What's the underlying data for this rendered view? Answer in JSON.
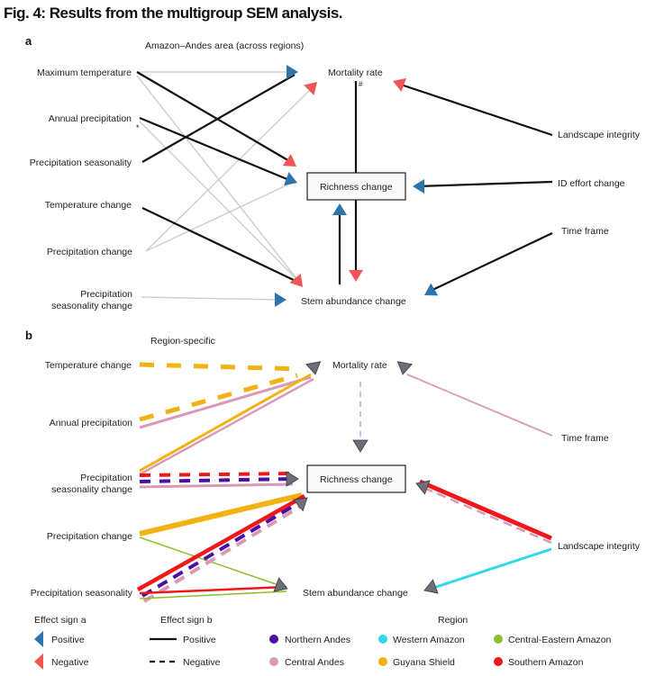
{
  "title": "Fig. 4: Results from the multigroup SEM analysis.",
  "colors": {
    "positive": "#2c74b0",
    "negative": "#f25555",
    "northern_andes": "#4b0fa3",
    "western_amazon": "#2fd9e6",
    "central_eastern_amazon": "#8cbf2a",
    "central_andes": "#d99ab7",
    "guyana_shield": "#f2b214",
    "southern_amazon": "#f0171a",
    "region_arrow": "#6c6e78"
  },
  "panel_a": {
    "label": "a",
    "subtitle": "Amazon–Andes area (across regions)",
    "nodes": {
      "max_temp": "Maximum temperature",
      "annual_precip": "Annual precipitation",
      "precip_seasonality": "Precipitation seasonality",
      "temp_change": "Temperature change",
      "precip_change": "Precipitation change",
      "psc_1": "Precipitation",
      "psc_2": "seasonality change",
      "mortality": "Mortality rate",
      "richness": "Richness change",
      "stem": "Stem abundance change",
      "landscape": "Landscape integrity",
      "id_effort": "ID effort change",
      "time_frame": "Time frame"
    },
    "asterisk": "*",
    "hash": "#"
  },
  "panel_b": {
    "label": "b",
    "subtitle": "Region-specific",
    "nodes": {
      "temp_change": "Temperature change",
      "annual_precip": "Annual precipitation",
      "psc_1": "Precipitation",
      "psc_2": "seasonality change",
      "precip_change": "Precipitation change",
      "precip_seasonality": "Precipitation seasonality",
      "mortality": "Mortality rate",
      "richness": "Richness change",
      "stem": "Stem abundance change",
      "time_frame": "Time frame",
      "landscape": "Landscape integrity"
    }
  },
  "legend": {
    "effect_a": {
      "title": "Effect sign a",
      "positive": "Positive",
      "negative": "Negative"
    },
    "effect_b": {
      "title": "Effect sign b",
      "positive": "Positive",
      "negative": "Negative"
    },
    "region": {
      "title": "Region",
      "items": [
        "Northern Andes",
        "Western Amazon",
        "Central-Eastern Amazon",
        "Central Andes",
        "Guyana Shield",
        "Southern Amazon"
      ]
    }
  }
}
